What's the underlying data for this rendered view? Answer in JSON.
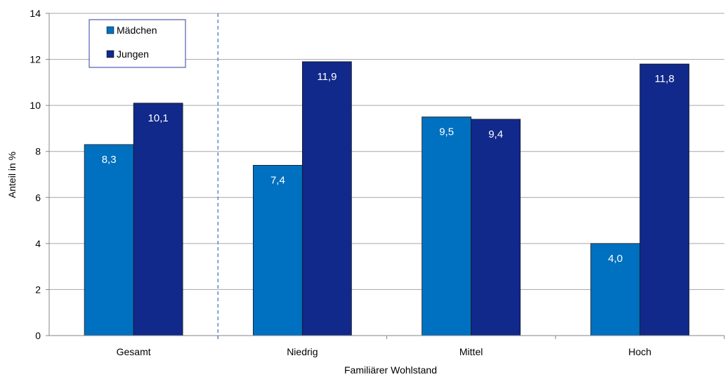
{
  "chart_data": {
    "type": "bar",
    "categories": [
      "Gesamt",
      "Niedrig",
      "Mittel",
      "Hoch"
    ],
    "series": [
      {
        "name": "Mädchen",
        "values": [
          8.3,
          7.4,
          9.5,
          4.0
        ],
        "labels": [
          "8,3",
          "7,4",
          "9,5",
          "4,0"
        ],
        "color": "#0070c0"
      },
      {
        "name": "Jungen",
        "values": [
          10.1,
          11.9,
          9.4,
          11.8
        ],
        "labels": [
          "10,1",
          "11,9",
          "9,4",
          "11,8"
        ],
        "color": "#10298a"
      }
    ],
    "title": "",
    "xlabel": "Familiärer Wohlstand",
    "ylabel": "Anteil in %",
    "ylim": [
      0,
      14
    ],
    "yticks": [
      0,
      2,
      4,
      6,
      8,
      10,
      12,
      14
    ],
    "grid": true,
    "legend_position": "top-left",
    "separator_after_category": "Gesamt"
  }
}
